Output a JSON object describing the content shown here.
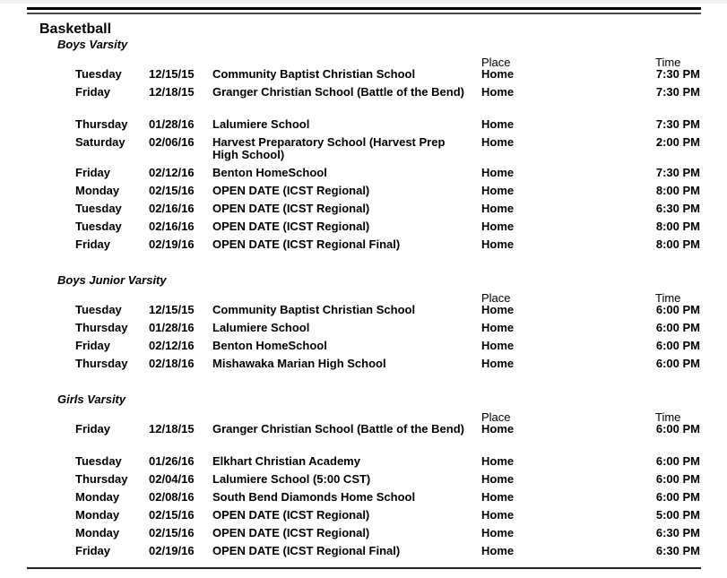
{
  "sport": "Basketball",
  "headers": {
    "place": "Place",
    "time": "Time"
  },
  "sections": [
    {
      "title": "Boys Varsity",
      "groups": [
        [
          {
            "day": "Tuesday",
            "date": "12/15/15",
            "opponent": "Community Baptist Christian School",
            "place": "Home",
            "time": "7:30 PM"
          },
          {
            "day": "Friday",
            "date": "12/18/15",
            "opponent": "Granger Christian School (Battle of the Bend)",
            "place": "Home",
            "time": "7:30 PM"
          }
        ],
        [
          {
            "day": "Thursday",
            "date": "01/28/16",
            "opponent": "Lalumiere School",
            "place": "Home",
            "time": "7:30 PM"
          },
          {
            "day": "Saturday",
            "date": "02/06/16",
            "opponent": "Harvest Preparatory School (Harvest Prep High School)",
            "place": "Home",
            "time": "2:00 PM"
          },
          {
            "day": "Friday",
            "date": "02/12/16",
            "opponent": "Benton HomeSchool",
            "place": "Home",
            "time": "7:30 PM"
          },
          {
            "day": "Monday",
            "date": "02/15/16",
            "opponent": "OPEN DATE (ICST Regional)",
            "place": "Home",
            "time": "8:00 PM"
          },
          {
            "day": "Tuesday",
            "date": "02/16/16",
            "opponent": "OPEN DATE (ICST Regional)",
            "place": "Home",
            "time": "6:30 PM"
          },
          {
            "day": "Tuesday",
            "date": "02/16/16",
            "opponent": "OPEN DATE (ICST Regional)",
            "place": "Home",
            "time": "8:00 PM"
          },
          {
            "day": "Friday",
            "date": "02/19/16",
            "opponent": "OPEN DATE (ICST Regional Final)",
            "place": "Home",
            "time": "8:00 PM"
          }
        ]
      ]
    },
    {
      "title": "Boys Junior Varsity",
      "groups": [
        [
          {
            "day": "Tuesday",
            "date": "12/15/15",
            "opponent": "Community Baptist Christian School",
            "place": "Home",
            "time": "6:00 PM"
          },
          {
            "day": "Thursday",
            "date": "01/28/16",
            "opponent": "Lalumiere School",
            "place": "Home",
            "time": "6:00 PM"
          },
          {
            "day": "Friday",
            "date": "02/12/16",
            "opponent": "Benton HomeSchool",
            "place": "Home",
            "time": "6:00 PM"
          },
          {
            "day": "Thursday",
            "date": "02/18/16",
            "opponent": "Mishawaka Marian High School",
            "place": "Home",
            "time": "6:00 PM"
          }
        ]
      ]
    },
    {
      "title": "Girls Varsity",
      "groups": [
        [
          {
            "day": "Friday",
            "date": "12/18/15",
            "opponent": "Granger Christian School (Battle of the Bend)",
            "place": "Home",
            "time": "6:00 PM"
          }
        ],
        [
          {
            "day": "Tuesday",
            "date": "01/26/16",
            "opponent": "Elkhart Christian Academy",
            "place": "Home",
            "time": "6:00 PM"
          },
          {
            "day": "Thursday",
            "date": "02/04/16",
            "opponent": "Lalumiere School (5:00 CST)",
            "place": "Home",
            "time": "6:00 PM"
          },
          {
            "day": "Monday",
            "date": "02/08/16",
            "opponent": "South Bend Diamonds Home School",
            "place": "Home",
            "time": "6:00 PM"
          },
          {
            "day": "Monday",
            "date": "02/15/16",
            "opponent": "OPEN DATE (ICST Regional)",
            "place": "Home",
            "time": "5:00 PM"
          },
          {
            "day": "Monday",
            "date": "02/15/16",
            "opponent": "OPEN DATE (ICST Regional)",
            "place": "Home",
            "time": "6:30 PM"
          },
          {
            "day": "Friday",
            "date": "02/19/16",
            "opponent": "OPEN DATE (ICST Regional Final)",
            "place": "Home",
            "time": "6:30 PM"
          }
        ]
      ]
    }
  ]
}
